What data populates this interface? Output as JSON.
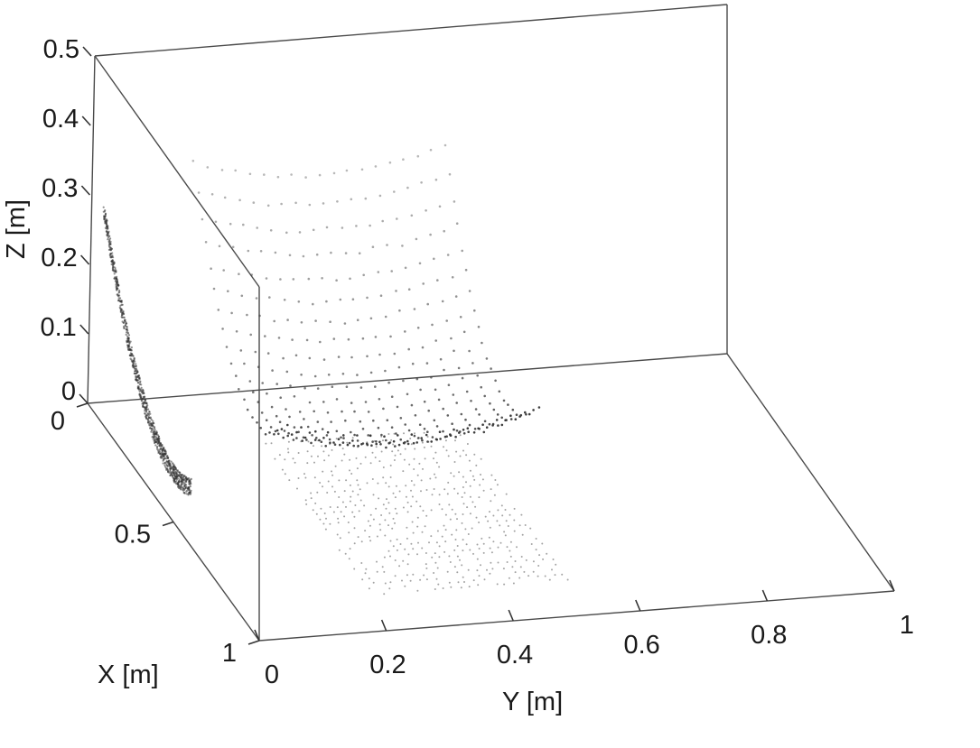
{
  "chart_data": {
    "type": "scatter",
    "projection": "3d",
    "xlabel": "X [m]",
    "ylabel": "Y [m]",
    "zlabel": "Z [m]",
    "xlim": [
      0,
      1
    ],
    "ylim": [
      0,
      1
    ],
    "zlim": [
      0,
      0.5
    ],
    "xticks": [
      "0",
      "0.5",
      "1"
    ],
    "yticks": [
      "0",
      "0.2",
      "0.4",
      "0.6",
      "0.8",
      "1"
    ],
    "zticks": [
      "0",
      "0.1",
      "0.2",
      "0.3",
      "0.4",
      "0.5"
    ],
    "grid": false,
    "series": [
      {
        "description": "3D bowl-shaped point cloud",
        "x_range": [
          0.05,
          0.6
        ],
        "y_range": [
          0.15,
          0.55
        ],
        "z_range": [
          0.07,
          0.38
        ]
      },
      {
        "description": "projection onto X-Z wall",
        "z_range": [
          0.0,
          0.31
        ]
      },
      {
        "description": "projection onto X-Y floor",
        "x_range": [
          0.2,
          0.85
        ],
        "y_range": [
          0.22,
          0.52
        ]
      }
    ],
    "colors": {
      "points": "#333333",
      "axes": "#555555"
    }
  }
}
